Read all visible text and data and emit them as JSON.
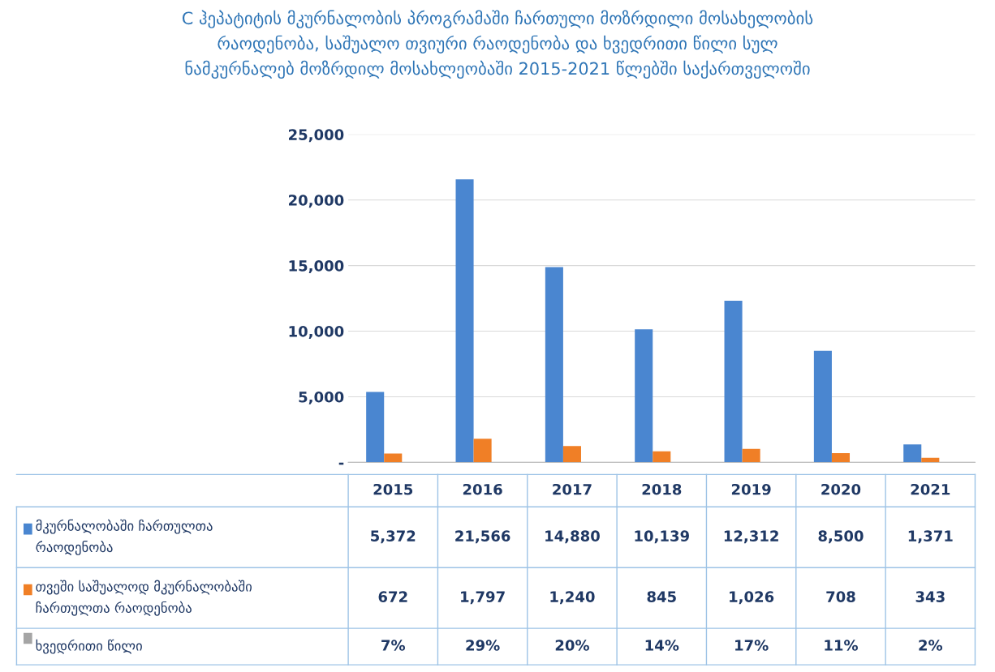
{
  "chart_data": {
    "type": "bar",
    "title": "C ჰეპატიტის მკურნალობის პროგრამაში ჩართული მოზრდილი მოსახელობის\nრაოდენობა, საშუალო თვიური რაოდენობა და ხვედრითი წილი სულ\nნამკურნალებ მოზრდილ მოსახლეობაში 2015-2021 წლებში საქართველოში",
    "categories": [
      "2015",
      "2016",
      "2017",
      "2018",
      "2019",
      "2020",
      "2021"
    ],
    "series": [
      {
        "name": "მკურნალობაში ჩართულთა\nრაოდენობა",
        "color": "#4a86d0",
        "values": [
          5372,
          21566,
          14880,
          10139,
          12312,
          8500,
          1371
        ],
        "value_labels": [
          "5,372",
          "21,566",
          "14,880",
          "10,139",
          "12,312",
          "8,500",
          "1,371"
        ]
      },
      {
        "name": "თვეში საშუალოდ მკურნალობაში\nჩართულთა რაოდენობა",
        "color": "#f07f26",
        "values": [
          672,
          1797,
          1240,
          845,
          1026,
          708,
          343
        ],
        "value_labels": [
          "672",
          "1,797",
          "1,240",
          "845",
          "1,026",
          "708",
          "343"
        ]
      },
      {
        "name": "ხვედრითი წილი",
        "color": "#a5a5a5",
        "values": [
          7,
          29,
          20,
          14,
          17,
          11,
          2
        ],
        "value_labels": [
          "7%",
          "29%",
          "20%",
          "14%",
          "17%",
          "11%",
          "2%"
        ]
      }
    ],
    "ylim": [
      0,
      25000
    ],
    "yticks": [
      {
        "value": 0,
        "label": "-"
      },
      {
        "value": 5000,
        "label": "5,000"
      },
      {
        "value": 10000,
        "label": "10,000"
      },
      {
        "value": 15000,
        "label": "15,000"
      },
      {
        "value": 20000,
        "label": "20,000"
      },
      {
        "value": 25000,
        "label": "25,000"
      }
    ],
    "grid": "y",
    "legend": "bottom"
  }
}
